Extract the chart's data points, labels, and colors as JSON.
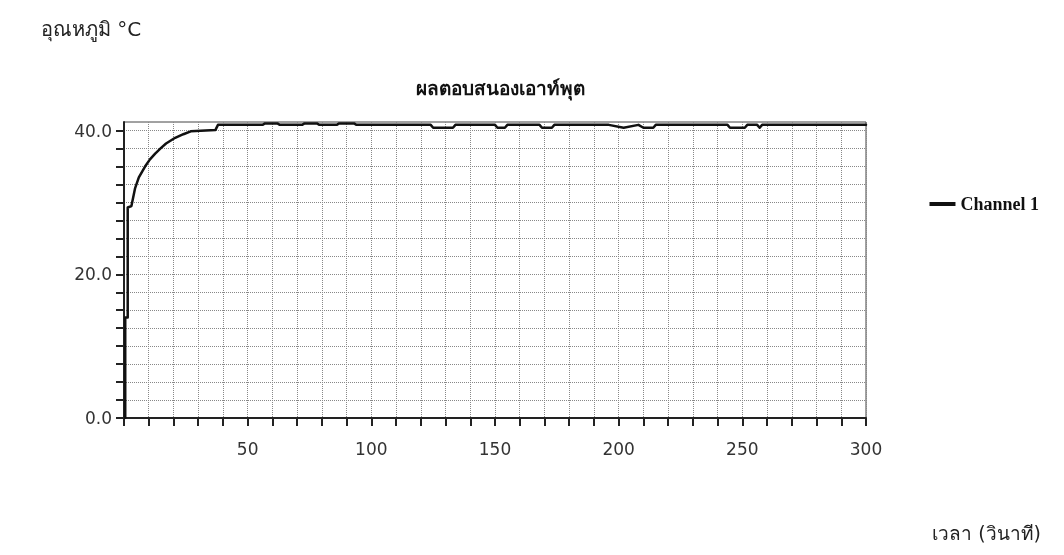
{
  "chart_data": {
    "type": "line",
    "title": "ผลตอบสนองเอาท์พุต",
    "ylabel": "อุณหภูมิ °C",
    "xlabel": "เวลา (วินาที)",
    "xlim": [
      0,
      300
    ],
    "xticks": [
      {
        "value": 0,
        "label": null
      },
      {
        "value": 10,
        "label": null
      },
      {
        "value": 20,
        "label": null
      },
      {
        "value": 30,
        "label": null
      },
      {
        "value": 40,
        "label": null
      },
      50,
      {
        "value": 60,
        "label": null
      },
      {
        "value": 70,
        "label": null
      },
      {
        "value": 80,
        "label": null
      },
      {
        "value": 90,
        "label": null
      },
      100,
      {
        "value": 110,
        "label": null
      },
      {
        "value": 120,
        "label": null
      },
      {
        "value": 130,
        "label": null
      },
      {
        "value": 140,
        "label": null
      },
      150,
      {
        "value": 160,
        "label": null
      },
      {
        "value": 170,
        "label": null
      },
      {
        "value": 180,
        "label": null
      },
      {
        "value": 190,
        "label": null
      },
      200,
      {
        "value": 210,
        "label": null
      },
      {
        "value": 220,
        "label": null
      },
      {
        "value": 230,
        "label": null
      },
      {
        "value": 240,
        "label": null
      },
      250,
      {
        "value": 260,
        "label": null
      },
      {
        "value": 270,
        "label": null
      },
      {
        "value": 280,
        "label": null
      },
      {
        "value": 290,
        "label": null
      },
      300
    ],
    "ylim": [
      0,
      41.2
    ],
    "yticks": [
      {
        "value": 0,
        "label": "0.0"
      },
      {
        "value": 2.5,
        "label": null
      },
      {
        "value": 5,
        "label": null
      },
      {
        "value": 7.5,
        "label": null
      },
      {
        "value": 10,
        "label": null
      },
      {
        "value": 12.5,
        "label": null
      },
      {
        "value": 15,
        "label": null
      },
      {
        "value": 17.5,
        "label": null
      },
      {
        "value": 20,
        "label": "20.0"
      },
      {
        "value": 22.5,
        "label": null
      },
      {
        "value": 25,
        "label": null
      },
      {
        "value": 27.5,
        "label": null
      },
      {
        "value": 30,
        "label": null
      },
      {
        "value": 32.5,
        "label": null
      },
      {
        "value": 35,
        "label": null
      },
      {
        "value": 37.5,
        "label": null
      },
      {
        "value": 40,
        "label": "40.0"
      }
    ],
    "grid": true,
    "legend": "right",
    "marker": "none",
    "line_style": "solid",
    "series": [
      {
        "name": "Channel 1",
        "color": "#111111",
        "x": [
          0.5,
          0.5,
          1.5,
          1.5,
          3,
          4.5,
          6,
          8.5,
          10.5,
          12.6,
          15,
          17,
          20.7,
          24,
          27,
          37,
          38,
          56,
          57,
          62,
          63,
          72,
          73,
          78,
          79,
          86,
          87,
          93,
          94,
          102,
          103,
          124,
          125,
          133,
          134,
          150,
          151,
          154,
          155,
          168,
          169,
          173,
          174,
          196,
          202,
          208,
          210,
          214,
          215,
          244,
          245,
          251,
          252,
          256,
          257,
          258,
          300
        ],
        "values": [
          0,
          14,
          14,
          29.3,
          29.5,
          32,
          33.5,
          35,
          36,
          36.8,
          37.6,
          38.2,
          39,
          39.5,
          39.9,
          40.1,
          40.8,
          40.8,
          41,
          41,
          40.8,
          40.8,
          41,
          41,
          40.8,
          40.8,
          41,
          41,
          40.8,
          40.8,
          40.8,
          40.8,
          40.4,
          40.4,
          40.8,
          40.8,
          40.4,
          40.4,
          40.8,
          40.8,
          40.4,
          40.4,
          40.8,
          40.8,
          40.4,
          40.8,
          40.4,
          40.4,
          40.8,
          40.8,
          40.4,
          40.4,
          40.8,
          40.8,
          40.4,
          40.8,
          40.8
        ]
      }
    ]
  }
}
